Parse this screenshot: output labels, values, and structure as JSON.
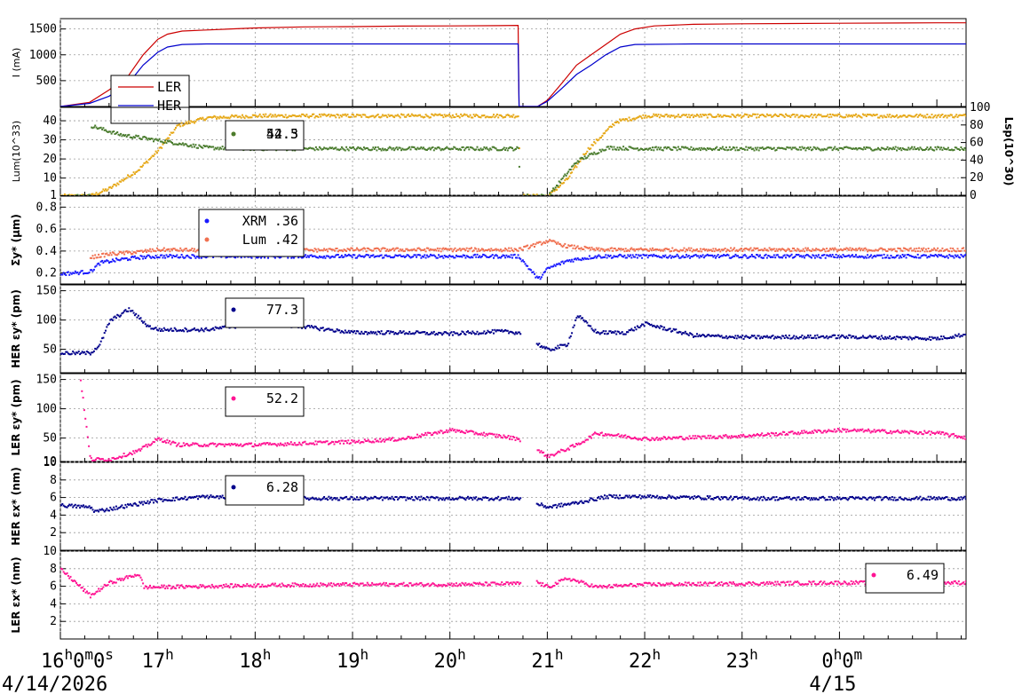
{
  "x_axis": {
    "ticks": [
      {
        "main": "16",
        "sup": "h",
        "main2": "0",
        "sup2": "m",
        "main3": "0",
        "sup3": "s",
        "date": "4/14/2026"
      },
      {
        "main": "17",
        "sup": "h"
      },
      {
        "main": "18",
        "sup": "h"
      },
      {
        "main": "19",
        "sup": "h"
      },
      {
        "main": "20",
        "sup": "h"
      },
      {
        "main": "21",
        "sup": "h"
      },
      {
        "main": "22",
        "sup": "h"
      },
      {
        "main": "23",
        "sup": "h"
      },
      {
        "main": "0",
        "sup": "h",
        "main2": "0",
        "sup2": "m",
        "date": "4/15"
      }
    ]
  },
  "chart_data": [
    {
      "type": "line",
      "ylabel": "I (mA)",
      "ylim": [
        0,
        1700
      ],
      "yticks": [
        "500",
        "1000",
        "1500"
      ],
      "legend": {
        "placement": "lower-left",
        "entries": [
          "LER",
          "HER"
        ]
      },
      "series": [
        {
          "name": "LER",
          "color": "#cc0000",
          "points": [
            [
              0,
              0
            ],
            [
              0.3,
              80
            ],
            [
              0.5,
              320
            ],
            [
              0.7,
              600
            ],
            [
              0.85,
              1000
            ],
            [
              1.0,
              1300
            ],
            [
              1.1,
              1400
            ],
            [
              1.25,
              1460
            ],
            [
              1.5,
              1480
            ],
            [
              2.0,
              1520
            ],
            [
              2.5,
              1540
            ],
            [
              3.0,
              1545
            ],
            [
              3.5,
              1555
            ],
            [
              4.0,
              1560
            ],
            [
              4.5,
              1565
            ],
            [
              4.7,
              1570
            ],
            [
              4.71,
              0
            ],
            [
              4.9,
              0
            ],
            [
              5.0,
              120
            ],
            [
              5.15,
              450
            ],
            [
              5.3,
              800
            ],
            [
              5.45,
              1000
            ],
            [
              5.6,
              1200
            ],
            [
              5.75,
              1400
            ],
            [
              5.9,
              1500
            ],
            [
              6.1,
              1560
            ],
            [
              6.5,
              1590
            ],
            [
              7.0,
              1600
            ],
            [
              8.0,
              1610
            ],
            [
              9.0,
              1620
            ],
            [
              9.3,
              1620
            ]
          ]
        },
        {
          "name": "HER",
          "color": "#0000cc",
          "points": [
            [
              0,
              0
            ],
            [
              0.3,
              60
            ],
            [
              0.5,
              200
            ],
            [
              0.7,
              450
            ],
            [
              0.85,
              800
            ],
            [
              1.0,
              1050
            ],
            [
              1.1,
              1150
            ],
            [
              1.25,
              1200
            ],
            [
              1.5,
              1210
            ],
            [
              2.0,
              1210
            ],
            [
              3.0,
              1210
            ],
            [
              4.0,
              1210
            ],
            [
              4.7,
              1210
            ],
            [
              4.71,
              0
            ],
            [
              4.9,
              0
            ],
            [
              5.0,
              100
            ],
            [
              5.15,
              350
            ],
            [
              5.3,
              620
            ],
            [
              5.45,
              800
            ],
            [
              5.6,
              1000
            ],
            [
              5.75,
              1150
            ],
            [
              5.9,
              1200
            ],
            [
              6.5,
              1210
            ],
            [
              7.5,
              1210
            ],
            [
              9.3,
              1210
            ]
          ]
        }
      ]
    },
    {
      "type": "scatter",
      "ylabel": "Lum(10^33)",
      "ylim": [
        1,
        47
      ],
      "yticks": [
        "1",
        "10",
        "20",
        "30",
        "40"
      ],
      "y2label": "Lsp(10^30)",
      "y2lim": [
        0,
        100
      ],
      "y2ticks": [
        "0",
        "20",
        "40",
        "60",
        "80",
        "100"
      ],
      "legend": {
        "placement": "top-center",
        "entries": [
          "42.5",
          "54.3"
        ]
      },
      "series": [
        {
          "name": "42.5",
          "color": "#e6a817",
          "axis": "left",
          "points": [
            [
              0,
              1
            ],
            [
              0.3,
              1
            ],
            [
              0.5,
              5
            ],
            [
              0.8,
              15
            ],
            [
              1.0,
              25
            ],
            [
              1.2,
              38
            ],
            [
              1.5,
              42
            ],
            [
              2.0,
              43
            ],
            [
              3.0,
              43
            ],
            [
              4.0,
              43
            ],
            [
              4.7,
              43
            ],
            [
              4.71,
              1
            ],
            [
              4.9,
              1
            ],
            [
              5.0,
              1
            ],
            [
              5.2,
              10
            ],
            [
              5.4,
              25
            ],
            [
              5.7,
              40
            ],
            [
              6.0,
              43
            ],
            [
              7.0,
              43
            ],
            [
              8.0,
              43
            ],
            [
              9.3,
              43
            ]
          ]
        },
        {
          "name": "54.3",
          "color": "#4a7c2e",
          "axis": "right",
          "points": [
            [
              0,
              0
            ],
            [
              0.3,
              0
            ],
            [
              0.31,
              80
            ],
            [
              0.6,
              70
            ],
            [
              0.9,
              65
            ],
            [
              1.2,
              60
            ],
            [
              1.5,
              55
            ],
            [
              2.0,
              54
            ],
            [
              3.0,
              54
            ],
            [
              4.0,
              54
            ],
            [
              4.7,
              54
            ],
            [
              4.71,
              0
            ],
            [
              5.0,
              0
            ],
            [
              5.3,
              40
            ],
            [
              5.6,
              55
            ],
            [
              6.0,
              54
            ],
            [
              7.0,
              54
            ],
            [
              8.0,
              54
            ],
            [
              9.3,
              54
            ]
          ]
        }
      ]
    },
    {
      "type": "scatter",
      "ylabel": "Σy* (µm)",
      "ylim": [
        0.1,
        0.9
      ],
      "yticks": [
        "0.2",
        "0.4",
        "0.6",
        "0.8"
      ],
      "legend": {
        "placement": "top-center",
        "entries": [
          "XRM  .36",
          "Lum  .42"
        ]
      },
      "series": [
        {
          "name": "XRM  .36",
          "color": "#1a1aff",
          "points": [
            [
              0,
              0.2
            ],
            [
              0.3,
              0.22
            ],
            [
              0.4,
              0.3
            ],
            [
              0.6,
              0.33
            ],
            [
              0.8,
              0.35
            ],
            [
              1.0,
              0.36
            ],
            [
              2.0,
              0.36
            ],
            [
              3.0,
              0.36
            ],
            [
              4.0,
              0.36
            ],
            [
              4.7,
              0.36
            ],
            [
              4.9,
              0.15
            ],
            [
              5.0,
              0.25
            ],
            [
              5.2,
              0.32
            ],
            [
              5.5,
              0.36
            ],
            [
              6.0,
              0.36
            ],
            [
              7.0,
              0.36
            ],
            [
              8.0,
              0.36
            ],
            [
              9.3,
              0.36
            ]
          ]
        },
        {
          "name": "Lum  .42",
          "color": "#f07050",
          "points": [
            [
              0.3,
              0.35
            ],
            [
              0.5,
              0.38
            ],
            [
              0.8,
              0.4
            ],
            [
              1.0,
              0.42
            ],
            [
              2.0,
              0.41
            ],
            [
              3.0,
              0.42
            ],
            [
              4.0,
              0.42
            ],
            [
              4.7,
              0.42
            ],
            [
              5.0,
              0.5
            ],
            [
              5.2,
              0.45
            ],
            [
              5.5,
              0.42
            ],
            [
              6.0,
              0.42
            ],
            [
              7.0,
              0.42
            ],
            [
              8.0,
              0.42
            ],
            [
              9.3,
              0.42
            ]
          ]
        }
      ]
    },
    {
      "type": "scatter",
      "ylabel": "HER εy* (pm)",
      "ylim": [
        10,
        160
      ],
      "yticks": [
        "50",
        "100",
        "150"
      ],
      "legend": {
        "placement": "top-center",
        "entries": [
          "77.3"
        ]
      },
      "series": [
        {
          "name": "77.3",
          "color": "#00008b",
          "points": [
            [
              0,
              45
            ],
            [
              0.3,
              45
            ],
            [
              0.4,
              60
            ],
            [
              0.5,
              100
            ],
            [
              0.7,
              120
            ],
            [
              0.9,
              90
            ],
            [
              1.0,
              85
            ],
            [
              1.5,
              85
            ],
            [
              2.0,
              95
            ],
            [
              2.5,
              90
            ],
            [
              3.0,
              80
            ],
            [
              3.5,
              80
            ],
            [
              4.0,
              78
            ],
            [
              4.5,
              82
            ],
            [
              4.7,
              80
            ],
            [
              5.0,
              50
            ],
            [
              5.2,
              60
            ],
            [
              5.3,
              110
            ],
            [
              5.5,
              80
            ],
            [
              5.8,
              80
            ],
            [
              6.0,
              95
            ],
            [
              6.5,
              75
            ],
            [
              7.0,
              72
            ],
            [
              8.0,
              73
            ],
            [
              9.0,
              70
            ],
            [
              9.3,
              77
            ]
          ]
        }
      ]
    },
    {
      "type": "scatter",
      "ylabel": "LER εy* (pm)",
      "ylim": [
        10,
        160
      ],
      "yticks": [
        "10",
        "50",
        "100",
        "150"
      ],
      "legend": {
        "placement": "top-center",
        "entries": [
          "52.2"
        ]
      },
      "series": [
        {
          "name": "52.2",
          "color": "#ff1493",
          "points": [
            [
              0.2,
              150
            ],
            [
              0.3,
              15
            ],
            [
              0.5,
              15
            ],
            [
              0.8,
              30
            ],
            [
              1.0,
              50
            ],
            [
              1.2,
              40
            ],
            [
              2.0,
              40
            ],
            [
              3.0,
              45
            ],
            [
              3.5,
              50
            ],
            [
              4.0,
              65
            ],
            [
              4.5,
              55
            ],
            [
              4.7,
              50
            ],
            [
              5.0,
              20
            ],
            [
              5.3,
              40
            ],
            [
              5.5,
              60
            ],
            [
              6.0,
              50
            ],
            [
              7.0,
              55
            ],
            [
              8.0,
              65
            ],
            [
              9.0,
              60
            ],
            [
              9.3,
              52
            ]
          ]
        }
      ]
    },
    {
      "type": "scatter",
      "ylabel": "HER εx* (nm)",
      "ylim": [
        0,
        10
      ],
      "yticks": [
        "2",
        "4",
        "6",
        "8",
        "10"
      ],
      "legend": {
        "placement": "top-center",
        "entries": [
          "6.28"
        ]
      },
      "series": [
        {
          "name": "6.28",
          "color": "#00008b",
          "points": [
            [
              0,
              5.2
            ],
            [
              0.3,
              5.0
            ],
            [
              0.35,
              4.5
            ],
            [
              0.7,
              5.2
            ],
            [
              1.0,
              5.8
            ],
            [
              1.5,
              6.2
            ],
            [
              2.0,
              6.0
            ],
            [
              3.0,
              6.0
            ],
            [
              4.0,
              6.0
            ],
            [
              4.7,
              6.0
            ],
            [
              5.0,
              5.0
            ],
            [
              5.3,
              5.5
            ],
            [
              5.6,
              6.2
            ],
            [
              6.0,
              6.2
            ],
            [
              7.0,
              6.0
            ],
            [
              8.0,
              6.0
            ],
            [
              9.3,
              6.0
            ]
          ]
        }
      ]
    },
    {
      "type": "scatter",
      "ylabel": "LER εx* (nm)",
      "ylim": [
        0,
        10
      ],
      "yticks": [
        "2",
        "4",
        "6",
        "8",
        "10"
      ],
      "legend": {
        "placement": "lower-right",
        "entries": [
          "6.49"
        ]
      },
      "series": [
        {
          "name": "6.49",
          "color": "#ff1493",
          "points": [
            [
              0,
              8
            ],
            [
              0.2,
              6
            ],
            [
              0.3,
              5
            ],
            [
              0.5,
              6.5
            ],
            [
              0.8,
              7.5
            ],
            [
              0.85,
              6.0
            ],
            [
              1.0,
              6.0
            ],
            [
              2.0,
              6.2
            ],
            [
              3.0,
              6.3
            ],
            [
              4.0,
              6.3
            ],
            [
              4.7,
              6.4
            ],
            [
              4.8,
              7
            ],
            [
              5.0,
              6.0
            ],
            [
              5.2,
              7.0
            ],
            [
              5.5,
              6.0
            ],
            [
              6.0,
              6.3
            ],
            [
              7.0,
              6.4
            ],
            [
              8.0,
              6.5
            ],
            [
              9.3,
              6.5
            ]
          ]
        }
      ]
    }
  ]
}
